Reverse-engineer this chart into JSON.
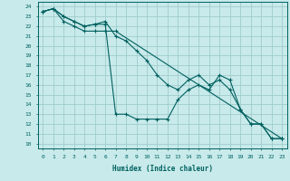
{
  "title": "",
  "xlabel": "Humidex (Indice chaleur)",
  "bg_color": "#c8eaea",
  "grid_color": "#a0cccc",
  "line_color": "#006060",
  "xlim": [
    -0.5,
    23.5
  ],
  "ylim": [
    9.5,
    24.5
  ],
  "xticks": [
    0,
    1,
    2,
    3,
    4,
    5,
    6,
    7,
    8,
    9,
    10,
    11,
    12,
    13,
    14,
    15,
    16,
    17,
    18,
    19,
    20,
    21,
    22,
    23
  ],
  "yticks": [
    10,
    11,
    12,
    13,
    14,
    15,
    16,
    17,
    18,
    19,
    20,
    21,
    22,
    23,
    24
  ],
  "line1_x": [
    0,
    1,
    2,
    3,
    4,
    5,
    6,
    7,
    8,
    9,
    10,
    11,
    12,
    13,
    14,
    15,
    16,
    17,
    18,
    19,
    20,
    21,
    22,
    23
  ],
  "line1_y": [
    23.5,
    23.8,
    23.0,
    22.5,
    22.0,
    22.2,
    22.2,
    13.0,
    13.0,
    12.5,
    12.5,
    12.5,
    12.5,
    14.5,
    15.5,
    16.0,
    15.5,
    17.0,
    16.5,
    13.5,
    12.0,
    12.0,
    10.5,
    10.5
  ],
  "line2_x": [
    0,
    1,
    2,
    3,
    4,
    5,
    6,
    7,
    23
  ],
  "line2_y": [
    23.5,
    23.8,
    22.5,
    22.0,
    21.5,
    21.5,
    21.5,
    21.5,
    10.5
  ],
  "line3_x": [
    0,
    1,
    2,
    3,
    4,
    5,
    6,
    7,
    8,
    9,
    10,
    11,
    12,
    13,
    14,
    15,
    16,
    17,
    18,
    19,
    20,
    21,
    22,
    23
  ],
  "line3_y": [
    23.5,
    23.8,
    23.0,
    22.5,
    22.0,
    22.2,
    22.5,
    21.0,
    20.5,
    19.5,
    18.5,
    17.0,
    16.0,
    15.5,
    16.5,
    17.0,
    16.0,
    16.5,
    15.5,
    13.5,
    12.0,
    12.0,
    10.5,
    10.5
  ]
}
